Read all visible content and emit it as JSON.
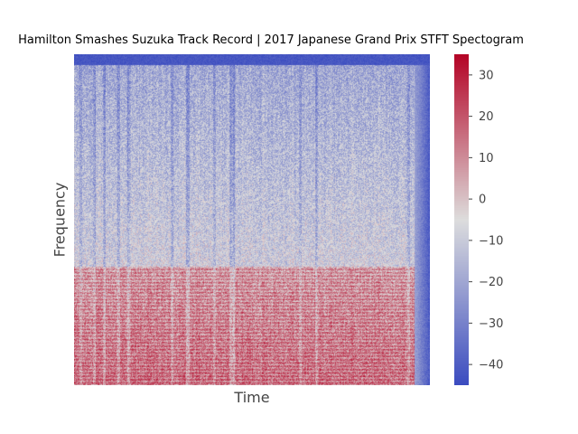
{
  "chart_data": {
    "type": "heatmap",
    "title": "Hamilton Smashes Suzuka Track Record | 2017 Japanese Grand Prix STFT Spectogram",
    "xlabel": "Time",
    "ylabel": "Frequency",
    "x_ticks_shown": false,
    "y_ticks_shown": false,
    "colormap": "coolwarm",
    "color_range": [
      -45,
      35
    ],
    "colorbar_ticks": [
      30,
      20,
      10,
      0,
      -10,
      -20,
      -30,
      -40
    ],
    "colorbar_tick_labels": [
      "30",
      "20",
      "10",
      "0",
      "−10",
      "−20",
      "−30",
      "−40"
    ],
    "grid": false,
    "value_profile": {
      "description_units": "dB",
      "low_frequency_band_mean": 12,
      "mid_frequency_band_mean": -8,
      "high_frequency_band_mean": -20,
      "edge_mean": -42
    }
  },
  "colors": {
    "cmap_low": "#3b4cc0",
    "cmap_mid": "#dddddd",
    "cmap_high": "#b40426",
    "text": "#444444",
    "title": "#000000"
  }
}
